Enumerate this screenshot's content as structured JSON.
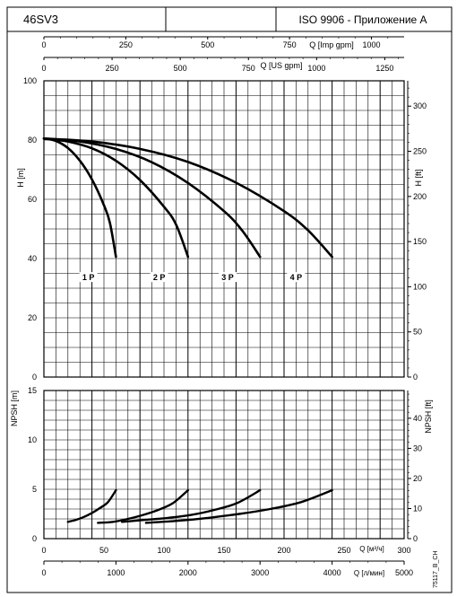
{
  "header": {
    "model": "46SV3",
    "standard": "ISO 9906 - Приложение A"
  },
  "side_code": "75117_B_CH",
  "chart_data": [
    {
      "type": "line",
      "name_id": "head-curves",
      "ylabel_left": "H [m]",
      "ylabel_right": "H [ft]",
      "xlabel_top1": "Q [Imp gpm]",
      "xlabel_top2": "Q [US gpm]",
      "ylim": [
        0,
        100
      ],
      "yticks_left": [
        "0",
        "20",
        "40",
        "60",
        "80",
        "100"
      ],
      "yticks_right": [
        "0",
        "50",
        "100",
        "150",
        "200",
        "250",
        "300"
      ],
      "xticks_imp_gpm": [
        "0",
        "250",
        "500",
        "750",
        "1000"
      ],
      "xticks_us_gpm": [
        "0",
        "250",
        "500",
        "750",
        "1000",
        "1250"
      ],
      "x_unit": "m3/h",
      "xlim": [
        0,
        300
      ],
      "series": [
        {
          "name": "1 P",
          "label_at": [
            37,
            33
          ],
          "points": [
            [
              0,
              80.5
            ],
            [
              10,
              79.7
            ],
            [
              20,
              77.3
            ],
            [
              30,
              73.0
            ],
            [
              40,
              66.7
            ],
            [
              50,
              58.0
            ],
            [
              55,
              52.0
            ],
            [
              60,
              40.6
            ]
          ]
        },
        {
          "name": "2 P",
          "label_at": [
            96,
            33
          ],
          "points": [
            [
              0,
              80.5
            ],
            [
              20,
              79.5
            ],
            [
              40,
              77.2
            ],
            [
              60,
              73.0
            ],
            [
              80,
              66.5
            ],
            [
              100,
              57.5
            ],
            [
              110,
              51.5
            ],
            [
              120,
              40.6
            ]
          ]
        },
        {
          "name": "3 P",
          "label_at": [
            153,
            33
          ],
          "points": [
            [
              0,
              80.5
            ],
            [
              30,
              79.5
            ],
            [
              60,
              77.0
            ],
            [
              90,
              72.5
            ],
            [
              120,
              65.5
            ],
            [
              150,
              56.0
            ],
            [
              165,
              49.5
            ],
            [
              180,
              40.6
            ]
          ]
        },
        {
          "name": "4 P",
          "label_at": [
            210,
            33
          ],
          "points": [
            [
              0,
              80.5
            ],
            [
              40,
              79.5
            ],
            [
              80,
              77.0
            ],
            [
              120,
              72.6
            ],
            [
              160,
              65.6
            ],
            [
              200,
              56.0
            ],
            [
              220,
              49.5
            ],
            [
              240,
              40.6
            ]
          ]
        }
      ]
    },
    {
      "type": "line",
      "name_id": "npsh-curves",
      "ylabel_left": "NPSH [m]",
      "ylabel_right": "NPSH [ft]",
      "xlabel_bottom1": "Q [м³/ч]",
      "xlabel_bottom2": "Q [л/мин]",
      "ylim": [
        0,
        15
      ],
      "yticks_left": [
        "0",
        "5",
        "10",
        "15"
      ],
      "yticks_right": [
        "0",
        "10",
        "20",
        "30",
        "40"
      ],
      "xticks_m3h": [
        "0",
        "50",
        "100",
        "150",
        "200",
        "250",
        "300"
      ],
      "xticks_lmin": [
        "0",
        "1000",
        "2000",
        "3000",
        "4000",
        "5000"
      ],
      "xlim": [
        0,
        300
      ],
      "series": [
        {
          "name": "1 P",
          "points": [
            [
              0,
              1.7
            ],
            [
              10,
              1.9
            ],
            [
              20,
              2.2
            ],
            [
              30,
              2.6
            ],
            [
              40,
              3.1
            ],
            [
              50,
              3.7
            ],
            [
              60,
              4.9
            ]
          ]
        },
        {
          "name": "2 P",
          "points": [
            [
              0,
              1.6
            ],
            [
              20,
              1.7
            ],
            [
              40,
              2.0
            ],
            [
              60,
              2.4
            ],
            [
              80,
              2.9
            ],
            [
              100,
              3.6
            ],
            [
              120,
              4.9
            ]
          ]
        },
        {
          "name": "3 P",
          "points": [
            [
              0,
              1.7
            ],
            [
              30,
              1.9
            ],
            [
              60,
              2.1
            ],
            [
              90,
              2.4
            ],
            [
              120,
              2.9
            ],
            [
              150,
              3.6
            ],
            [
              180,
              4.9
            ]
          ]
        },
        {
          "name": "4 P",
          "points": [
            [
              0,
              1.6
            ],
            [
              40,
              1.8
            ],
            [
              80,
              2.1
            ],
            [
              120,
              2.5
            ],
            [
              160,
              3.0
            ],
            [
              200,
              3.7
            ],
            [
              240,
              4.9
            ]
          ]
        }
      ]
    }
  ]
}
